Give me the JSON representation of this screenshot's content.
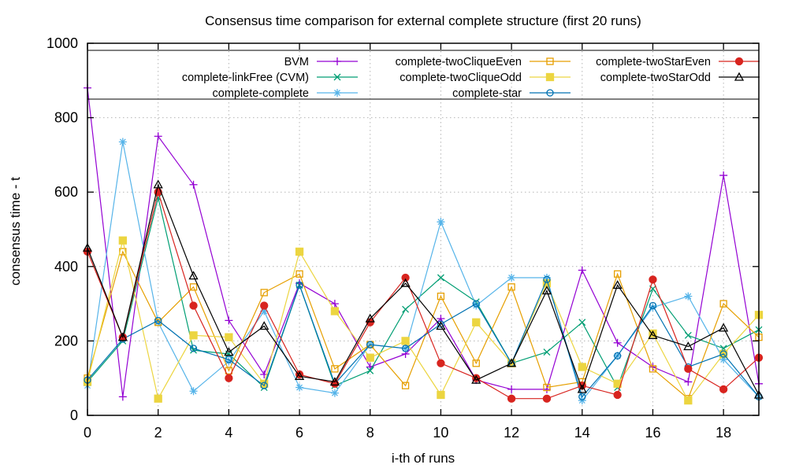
{
  "chart_data": {
    "type": "line",
    "title": "Consensus time comparison for external complete structure (first 20 runs)",
    "xlabel": "i-th of runs",
    "ylabel": "consensus time - t",
    "x": [
      0,
      1,
      2,
      3,
      4,
      5,
      6,
      7,
      8,
      9,
      10,
      11,
      12,
      13,
      14,
      15,
      16,
      17,
      18,
      19
    ],
    "xlim": [
      0,
      19
    ],
    "ylim": [
      0,
      1000
    ],
    "x_ticks": [
      0,
      2,
      4,
      6,
      8,
      10,
      12,
      14,
      16,
      18
    ],
    "y_ticks": [
      0,
      200,
      400,
      600,
      800,
      1000
    ],
    "grid": "dotted",
    "legend_position": "inside-top, 3 columns, boxed",
    "series": [
      {
        "name": "BVM",
        "color": "#9400d3",
        "marker": "plus",
        "values": [
          880,
          50,
          750,
          620,
          255,
          110,
          355,
          300,
          130,
          165,
          260,
          95,
          70,
          70,
          390,
          195,
          130,
          90,
          645,
          85
        ]
      },
      {
        "name": "complete-linkFree (CVM)",
        "color": "#009e73",
        "marker": "cross",
        "values": [
          90,
          200,
          585,
          175,
          165,
          75,
          350,
          80,
          120,
          285,
          370,
          305,
          140,
          170,
          250,
          75,
          340,
          215,
          180,
          230
        ]
      },
      {
        "name": "complete-complete",
        "color": "#56b4e9",
        "marker": "asterisk",
        "values": [
          80,
          735,
          250,
          65,
          145,
          280,
          75,
          60,
          190,
          180,
          520,
          295,
          370,
          370,
          40,
          160,
          290,
          320,
          150,
          50
        ]
      },
      {
        "name": "complete-twoCliqueEven",
        "color": "#e69f00",
        "marker": "square-open",
        "values": [
          100,
          440,
          250,
          345,
          120,
          330,
          380,
          125,
          190,
          80,
          320,
          140,
          345,
          75,
          90,
          380,
          125,
          45,
          300,
          210
        ]
      },
      {
        "name": "complete-twoCliqueOdd",
        "color": "#ecd540",
        "marker": "square-filled",
        "values": [
          90,
          470,
          45,
          215,
          210,
          85,
          440,
          280,
          155,
          200,
          55,
          250,
          140,
          355,
          130,
          85,
          220,
          40,
          165,
          270
        ]
      },
      {
        "name": "complete-star",
        "color": "#0072b2",
        "marker": "circle-open",
        "values": [
          95,
          205,
          255,
          180,
          150,
          80,
          350,
          85,
          190,
          180,
          245,
          300,
          140,
          365,
          50,
          160,
          295,
          130,
          165,
          50
        ]
      },
      {
        "name": "complete-twoStarEven",
        "color": "#d8241f",
        "marker": "circle-filled",
        "values": [
          440,
          210,
          600,
          295,
          100,
          295,
          110,
          85,
          250,
          370,
          140,
          100,
          45,
          45,
          80,
          55,
          365,
          125,
          70,
          155
        ]
      },
      {
        "name": "complete-twoStarOdd",
        "color": "#000000",
        "marker": "triangle-open",
        "values": [
          450,
          210,
          620,
          375,
          170,
          240,
          105,
          90,
          260,
          355,
          240,
          95,
          140,
          335,
          70,
          350,
          215,
          185,
          235,
          55
        ]
      }
    ]
  }
}
